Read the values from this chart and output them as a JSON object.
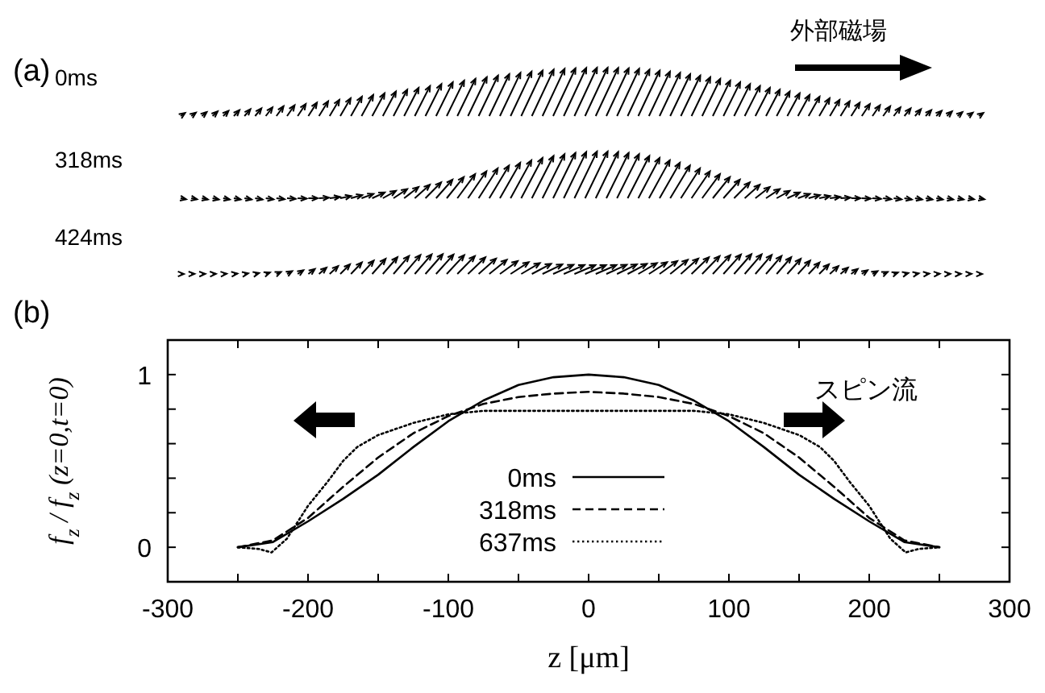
{
  "chart_data": [
    {
      "type": "other",
      "title": "(a)",
      "annotations": [
        "0ms",
        "318ms",
        "424ms",
        "外部磁場"
      ]
    },
    {
      "type": "line",
      "title": "(b)",
      "xlabel": "z [μm]",
      "ylabel": "f$_{z}$ / f$_{z}$ (z=0,t=0)",
      "xlim": [
        -300,
        300
      ],
      "ylim": [
        -0.2,
        1.2
      ],
      "xticks": [
        -300,
        {
          "value": -250,
          "label": null
        },
        -200,
        {
          "value": -150,
          "label": null
        },
        -100,
        {
          "value": -50,
          "label": null
        },
        0,
        {
          "value": 50,
          "label": null
        },
        100,
        {
          "value": 150,
          "label": null
        },
        200,
        {
          "value": 250,
          "label": null
        },
        300
      ],
      "yticks": [
        0,
        {
          "value": 0.2,
          "label": null
        },
        {
          "value": 0.4,
          "label": null
        },
        {
          "value": 0.6,
          "label": null
        },
        {
          "value": 0.8,
          "label": null
        },
        1
      ],
      "grid": false,
      "legend": "bottom",
      "annotations": [
        "スピン流"
      ],
      "series": [
        {
          "name": "0ms",
          "color": "#000000",
          "line_style": "solid",
          "x": [
            -250,
            -225,
            -200,
            -175,
            -150,
            -125,
            -100,
            -75,
            -50,
            -25,
            0,
            25,
            50,
            75,
            100,
            125,
            150,
            175,
            200,
            225,
            250
          ],
          "values": [
            0,
            0.03,
            0.15,
            0.28,
            0.42,
            0.58,
            0.73,
            0.85,
            0.94,
            0.985,
            1,
            0.985,
            0.94,
            0.85,
            0.73,
            0.58,
            0.42,
            0.28,
            0.15,
            0.03,
            0
          ]
        },
        {
          "name": "318ms",
          "color": "#000000",
          "line_style": "dashed",
          "x": [
            -250,
            -225,
            -200,
            -175,
            -150,
            -125,
            -100,
            -75,
            -50,
            -25,
            0,
            25,
            50,
            75,
            100,
            125,
            150,
            175,
            200,
            225,
            250
          ],
          "values": [
            0,
            0.04,
            0.17,
            0.35,
            0.52,
            0.66,
            0.76,
            0.83,
            0.87,
            0.89,
            0.9,
            0.89,
            0.87,
            0.83,
            0.76,
            0.66,
            0.52,
            0.35,
            0.17,
            0.04,
            0
          ]
        },
        {
          "name": "637ms",
          "color": "#000000",
          "line_style": "dotted",
          "x": [
            -250,
            -235,
            -226,
            -215,
            -200,
            -186,
            -175,
            -165,
            -150,
            -125,
            -100,
            -75,
            -50,
            0,
            50,
            75,
            100,
            125,
            150,
            165,
            175,
            186,
            200,
            215,
            226,
            235,
            250
          ],
          "values": [
            0,
            -0.01,
            -0.03,
            0.05,
            0.24,
            0.38,
            0.5,
            0.58,
            0.65,
            0.72,
            0.77,
            0.79,
            0.79,
            0.79,
            0.79,
            0.79,
            0.77,
            0.72,
            0.65,
            0.58,
            0.5,
            0.38,
            0.24,
            0.05,
            -0.03,
            -0.01,
            0
          ]
        }
      ]
    }
  ]
}
